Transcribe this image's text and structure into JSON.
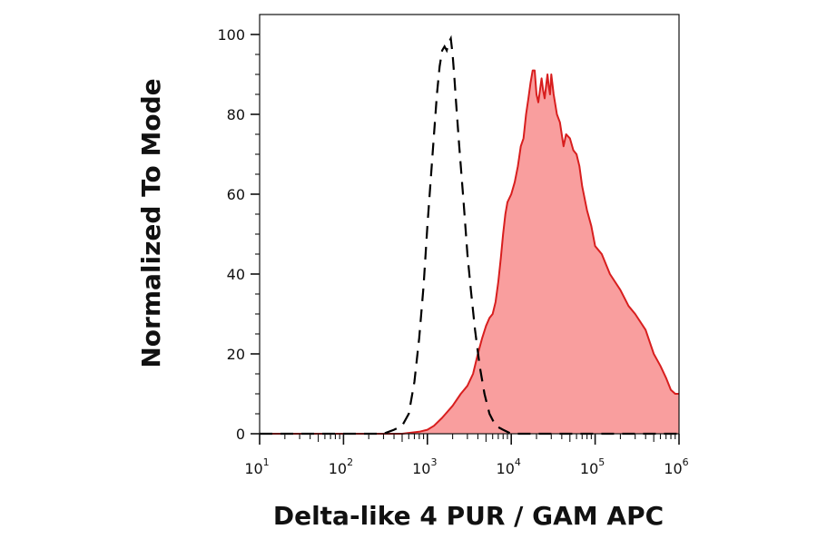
{
  "chart_data": {
    "type": "area",
    "title": "",
    "xlabel": "Delta-like 4 PUR / GAM APC",
    "ylabel": "Normalized To Mode",
    "xscale": "log",
    "xlim": [
      10,
      1000000
    ],
    "ylim": [
      0,
      100
    ],
    "x_tick_labels": [
      {
        "value": 10,
        "base": "10",
        "exp": "1"
      },
      {
        "value": 100,
        "base": "10",
        "exp": "2"
      },
      {
        "value": 1000,
        "base": "10",
        "exp": "3"
      },
      {
        "value": 10000,
        "base": "10",
        "exp": "4"
      },
      {
        "value": 100000,
        "base": "10",
        "exp": "5"
      },
      {
        "value": 1000000,
        "base": "10",
        "exp": "6"
      }
    ],
    "y_ticks": [
      0,
      20,
      40,
      60,
      80,
      100
    ],
    "grid": false,
    "legend": "none",
    "series": [
      {
        "style": "dashed-line",
        "color": "#000000",
        "x": [
          10,
          50,
          150,
          300,
          400,
          500,
          600,
          700,
          800,
          900,
          1000,
          1100,
          1200,
          1300,
          1400,
          1500,
          1600,
          1700,
          1800,
          1900,
          2000,
          2100,
          2200,
          2400,
          2700,
          3000,
          3300,
          3700,
          4200,
          4800,
          5500,
          6500,
          8000,
          10000,
          20000,
          100000,
          1000000
        ],
        "y": [
          0,
          0,
          0,
          0,
          1,
          2,
          5,
          13,
          24,
          37,
          52,
          64,
          75,
          85,
          92,
          96,
          97,
          96,
          98,
          99,
          95,
          89,
          83,
          72,
          58,
          45,
          36,
          26,
          17,
          10,
          5,
          2,
          1,
          0,
          0,
          0,
          0
        ]
      },
      {
        "style": "filled-area",
        "color": "#d81e1e",
        "fill": "#f99e9e",
        "x": [
          10,
          100,
          500,
          800,
          1000,
          1200,
          1500,
          2000,
          2500,
          3000,
          3500,
          4000,
          4500,
          5000,
          5500,
          6000,
          6500,
          7000,
          7500,
          8000,
          8500,
          9000,
          10000,
          11000,
          12000,
          13000,
          14000,
          15000,
          16000,
          17000,
          18000,
          19000,
          20000,
          21000,
          22000,
          23000,
          24000,
          25000,
          26000,
          27000,
          28000,
          29000,
          30000,
          32000,
          35000,
          38000,
          42000,
          45000,
          50000,
          55000,
          60000,
          65000,
          70000,
          80000,
          90000,
          100000,
          120000,
          150000,
          200000,
          250000,
          300000,
          400000,
          500000,
          600000,
          700000,
          800000,
          900000,
          1000000
        ],
        "y": [
          0,
          0,
          0,
          0.5,
          1,
          2,
          4,
          7,
          10,
          12,
          15,
          20,
          24,
          27,
          29,
          30,
          33,
          38,
          44,
          50,
          55,
          58,
          60,
          63,
          67,
          72,
          74,
          80,
          84,
          88,
          91,
          91,
          85,
          83,
          86,
          89,
          86,
          84,
          87,
          90,
          87,
          85,
          90,
          85,
          80,
          78,
          72,
          75,
          74,
          71,
          70,
          67,
          62,
          56,
          52,
          47,
          45,
          40,
          36,
          32,
          30,
          26,
          20,
          17,
          14,
          11,
          10,
          10
        ]
      }
    ]
  }
}
